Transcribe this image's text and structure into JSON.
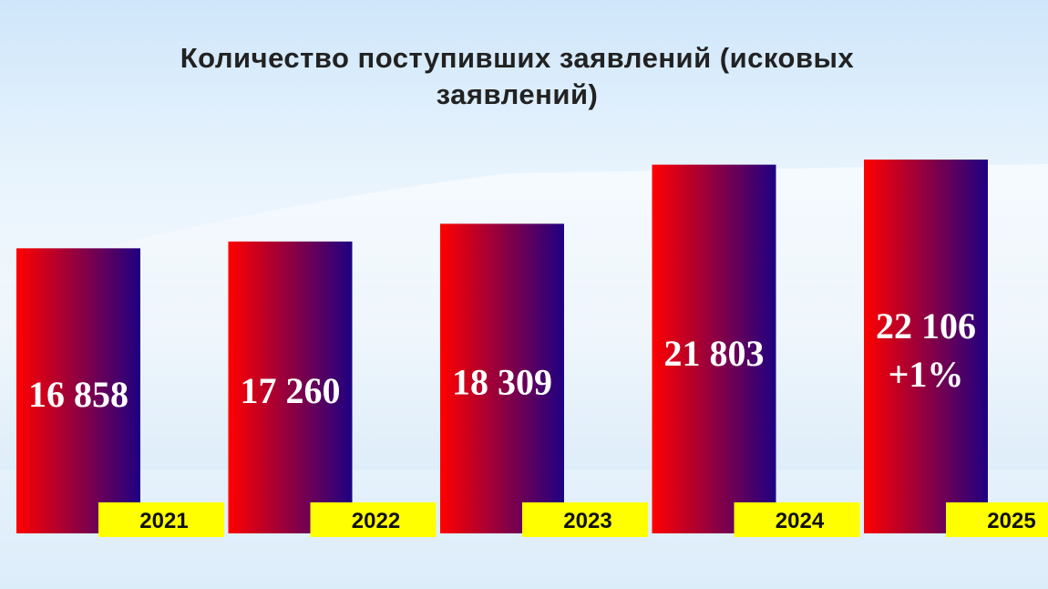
{
  "chart_data": {
    "type": "bar",
    "title": "Количество поступивших заявлений (исковых заявлений)",
    "categories": [
      "2021",
      "2022",
      "2023",
      "2024",
      "2025"
    ],
    "values": [
      16858,
      17260,
      18309,
      21803,
      22106
    ],
    "value_labels": [
      "16 858",
      "17 260",
      "18 309",
      "21 803",
      "22 106"
    ],
    "annotations": [
      {
        "category": 4,
        "text": "+1%"
      }
    ],
    "colors": [
      "#ff0000",
      "#1e0082"
    ],
    "label_color": "#ffff00"
  }
}
